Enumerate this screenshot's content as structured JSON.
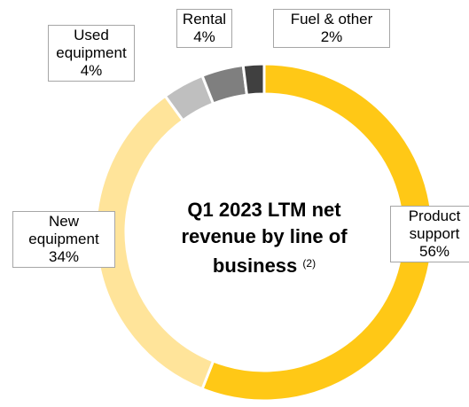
{
  "chart_data": {
    "type": "donut",
    "title": "Q1 2023 LTM net revenue by line of business",
    "title_note": "(2)",
    "categories": [
      "Product support",
      "New equipment",
      "Used equipment",
      "Rental",
      "Fuel & other"
    ],
    "values": [
      56,
      34,
      4,
      4,
      2
    ],
    "value_labels": [
      "56%",
      "34%",
      "4%",
      "4%",
      "2%"
    ],
    "colors": [
      "#FFC816",
      "#FFE49A",
      "#BFBFBF",
      "#7F7F7F",
      "#404040"
    ]
  }
}
